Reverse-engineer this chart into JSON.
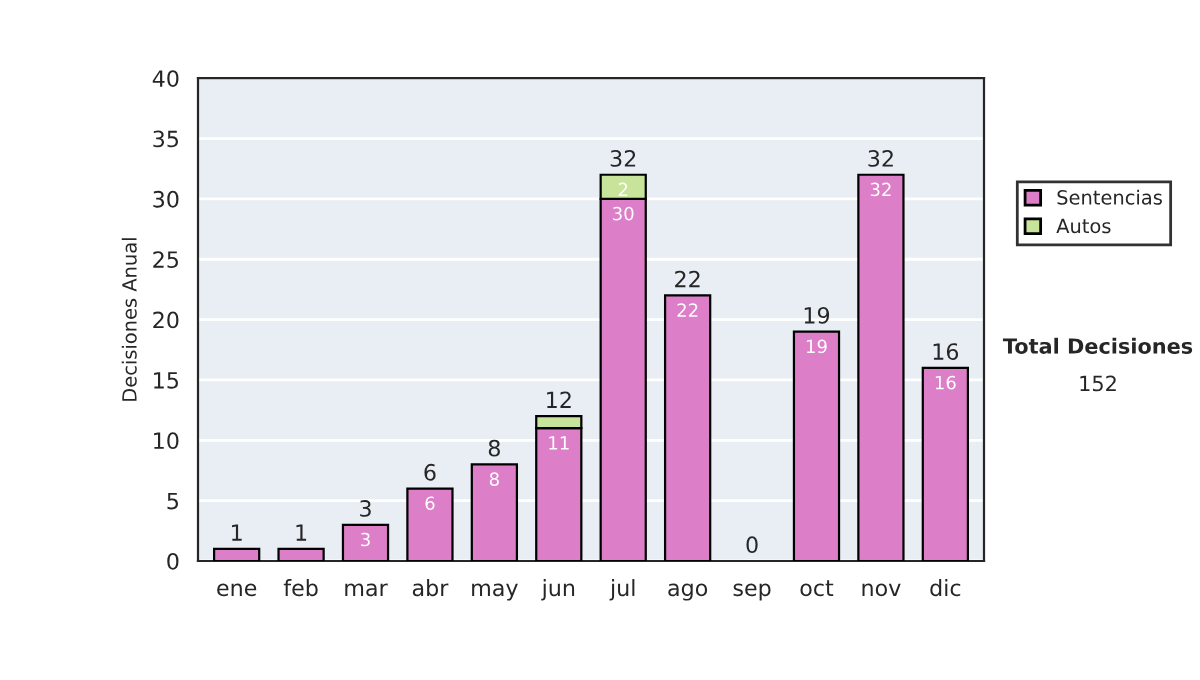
{
  "chart_data": {
    "type": "bar",
    "stacked": true,
    "ylabel": "Decisiones Anual",
    "categories": [
      "ene",
      "feb",
      "mar",
      "abr",
      "may",
      "jun",
      "jul",
      "ago",
      "sep",
      "oct",
      "nov",
      "dic"
    ],
    "series": [
      {
        "name": "Sentencias",
        "color": "#dd7fc8",
        "values": [
          1,
          1,
          3,
          6,
          8,
          11,
          30,
          22,
          0,
          19,
          32,
          16
        ],
        "value_labels": [
          null,
          null,
          "3",
          "6",
          "8",
          "11",
          "30",
          "22",
          null,
          "19",
          "32",
          "16"
        ]
      },
      {
        "name": "Autos",
        "color": "#c8e49a",
        "values": [
          0,
          0,
          0,
          0,
          0,
          1,
          2,
          0,
          0,
          0,
          0,
          0
        ],
        "value_labels": [
          null,
          null,
          null,
          null,
          null,
          null,
          "2",
          null,
          null,
          null,
          null,
          null
        ]
      }
    ],
    "totals": [
      "1",
      "1",
      "3",
      "6",
      "8",
      "12",
      "32",
      "22",
      "0",
      "19",
      "32",
      "16"
    ],
    "ylim": [
      0,
      40
    ],
    "yticks": [
      0,
      5,
      10,
      15,
      20,
      25,
      30,
      35,
      40
    ],
    "grid": "y",
    "legend": "right",
    "annotations": [
      "Total Decisiones",
      "152"
    ]
  }
}
